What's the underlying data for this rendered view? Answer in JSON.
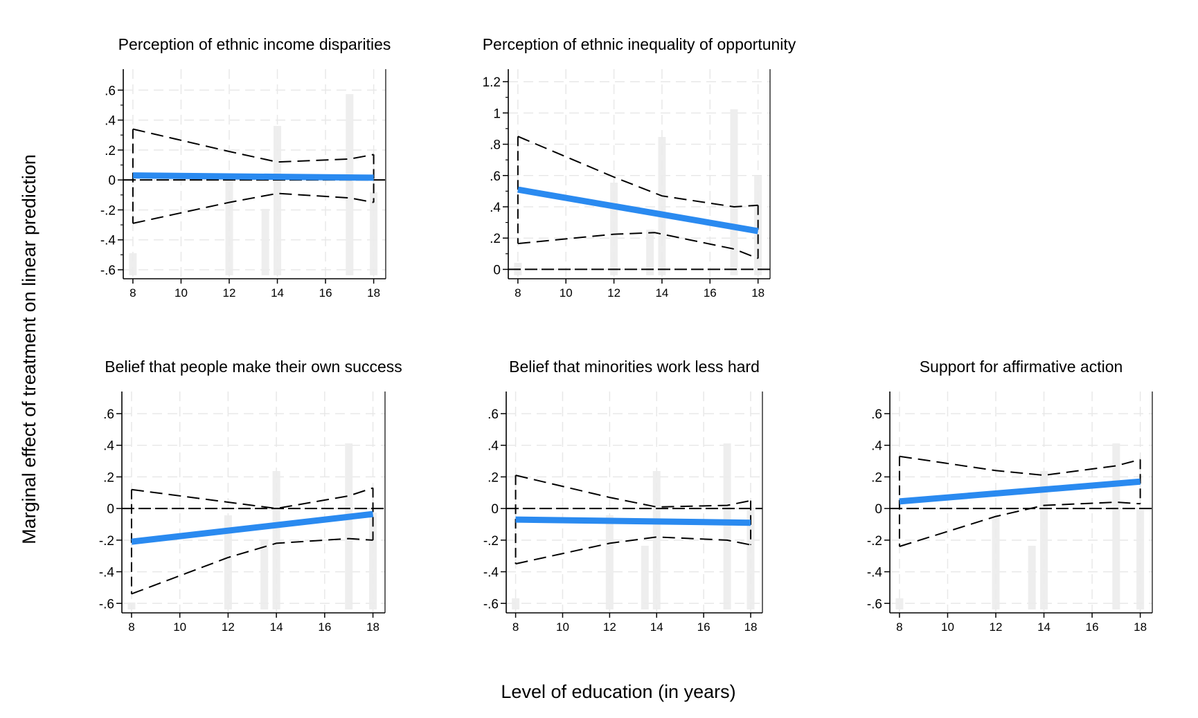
{
  "figure": {
    "ylabel": "Marginal effect of treatment on linear prediction",
    "xlabel": "Level of education (in years)"
  },
  "chart_data": [
    {
      "type": "line",
      "title": "Perception of ethnic income disparities",
      "x_ticks": [
        8,
        10,
        12,
        14,
        16,
        18
      ],
      "xlim": [
        7.6,
        18.5
      ],
      "y_ticks": [
        0.6,
        0.4,
        0.2,
        0,
        -0.2,
        -0.4,
        -0.6
      ],
      "y_tick_labels": [
        ".6",
        ".4",
        ".2",
        "0",
        "-.2",
        "-.4",
        "-.6"
      ],
      "ylim": [
        -0.66,
        0.74
      ],
      "minor_ticks": true,
      "grid": true,
      "reference_line_y": 0,
      "series": [
        {
          "role": "estimate",
          "x": [
            8,
            18
          ],
          "y": [
            0.03,
            0.015
          ]
        },
        {
          "role": "upper_ci",
          "x": [
            8,
            12,
            14,
            17,
            18
          ],
          "y": [
            0.34,
            0.19,
            0.12,
            0.14,
            0.17
          ]
        },
        {
          "role": "lower_ci",
          "x": [
            8,
            12,
            14,
            17,
            18
          ],
          "y": [
            -0.29,
            -0.15,
            -0.09,
            -0.12,
            -0.15
          ]
        }
      ],
      "histogram": [
        {
          "x": 8,
          "height": 0.16
        },
        {
          "x": 12,
          "height": 0.73
        },
        {
          "x": 13.5,
          "height": 0.48
        },
        {
          "x": 14,
          "height": 1.08
        },
        {
          "x": 17,
          "height": 1.31
        },
        {
          "x": 18,
          "height": 0.6
        }
      ]
    },
    {
      "type": "line",
      "title": "Perception of ethnic inequality of opportunity",
      "x_ticks": [
        8,
        10,
        12,
        14,
        16,
        18
      ],
      "xlim": [
        7.6,
        18.5
      ],
      "y_ticks": [
        1.2,
        1,
        0.8,
        0.6,
        0.4,
        0.2,
        0
      ],
      "y_tick_labels": [
        "1.2",
        "1",
        ".8",
        ".6",
        ".4",
        ".2",
        "0"
      ],
      "ylim": [
        -0.06,
        1.28
      ],
      "minor_ticks": true,
      "grid": true,
      "reference_line_y": 0,
      "series": [
        {
          "role": "estimate",
          "x": [
            8,
            18
          ],
          "y": [
            0.51,
            0.245
          ]
        },
        {
          "role": "upper_ci",
          "x": [
            8,
            12,
            14,
            17,
            18
          ],
          "y": [
            0.85,
            0.59,
            0.47,
            0.4,
            0.41
          ]
        },
        {
          "role": "lower_ci",
          "x": [
            8,
            12,
            13.7,
            17,
            18
          ],
          "y": [
            0.165,
            0.225,
            0.235,
            0.13,
            0.07
          ]
        }
      ],
      "histogram": [
        {
          "x": 8,
          "height": 0.09
        },
        {
          "x": 12,
          "height": 0.67
        },
        {
          "x": 13.5,
          "height": 0.33
        },
        {
          "x": 14,
          "height": 1.0
        },
        {
          "x": 17,
          "height": 1.2
        },
        {
          "x": 18,
          "height": 0.72
        }
      ]
    },
    {
      "type": "line",
      "title": "Belief that people make their own success",
      "x_ticks": [
        8,
        10,
        12,
        14,
        16,
        18
      ],
      "xlim": [
        7.6,
        18.5
      ],
      "y_ticks": [
        0.6,
        0.4,
        0.2,
        0,
        -0.2,
        -0.4,
        -0.6
      ],
      "y_tick_labels": [
        ".6",
        ".4",
        ".2",
        "0",
        "-.2",
        "-.4",
        "-.6"
      ],
      "ylim": [
        -0.66,
        0.74
      ],
      "minor_ticks": false,
      "grid": true,
      "reference_line_y": 0,
      "series": [
        {
          "role": "estimate",
          "x": [
            8,
            18
          ],
          "y": [
            -0.21,
            -0.035
          ]
        },
        {
          "role": "upper_ci",
          "x": [
            8,
            12,
            14,
            17,
            18
          ],
          "y": [
            0.12,
            0.04,
            0.0,
            0.08,
            0.13
          ]
        },
        {
          "role": "lower_ci",
          "x": [
            8,
            12,
            14,
            17,
            18
          ],
          "y": [
            -0.54,
            -0.31,
            -0.22,
            -0.19,
            -0.2
          ]
        }
      ],
      "histogram": [
        {
          "x": 8,
          "height": 0.05
        },
        {
          "x": 12,
          "height": 0.68
        },
        {
          "x": 13.5,
          "height": 0.5
        },
        {
          "x": 14,
          "height": 1.0
        },
        {
          "x": 17,
          "height": 1.2
        },
        {
          "x": 18,
          "height": 0.7
        }
      ]
    },
    {
      "type": "line",
      "title": "Belief that minorities work less hard",
      "x_ticks": [
        8,
        10,
        12,
        14,
        16,
        18
      ],
      "xlim": [
        7.6,
        18.5
      ],
      "y_ticks": [
        0.6,
        0.4,
        0.2,
        0,
        -0.2,
        -0.4,
        -0.6
      ],
      "y_tick_labels": [
        ".6",
        ".4",
        ".2",
        "0",
        "-.2",
        "-.4",
        "-.6"
      ],
      "ylim": [
        -0.66,
        0.74
      ],
      "minor_ticks": false,
      "grid": true,
      "reference_line_y": 0,
      "series": [
        {
          "role": "estimate",
          "x": [
            8,
            18
          ],
          "y": [
            -0.07,
            -0.09
          ]
        },
        {
          "role": "upper_ci",
          "x": [
            8,
            12,
            14,
            17,
            18
          ],
          "y": [
            0.21,
            0.07,
            0.01,
            0.02,
            0.05
          ]
        },
        {
          "role": "lower_ci",
          "x": [
            8,
            12,
            14,
            17,
            18
          ],
          "y": [
            -0.35,
            -0.22,
            -0.18,
            -0.2,
            -0.23
          ]
        }
      ],
      "histogram": [
        {
          "x": 8,
          "height": 0.08
        },
        {
          "x": 12,
          "height": 0.68
        },
        {
          "x": 13.5,
          "height": 0.46
        },
        {
          "x": 14,
          "height": 1.0
        },
        {
          "x": 17,
          "height": 1.2
        },
        {
          "x": 18,
          "height": 0.72
        }
      ]
    },
    {
      "type": "line",
      "title": "Support for affirmative action",
      "x_ticks": [
        8,
        10,
        12,
        14,
        16,
        18
      ],
      "xlim": [
        7.6,
        18.5
      ],
      "y_ticks": [
        0.6,
        0.4,
        0.2,
        0,
        -0.2,
        -0.4,
        -0.6
      ],
      "y_tick_labels": [
        ".6",
        ".4",
        ".2",
        "0",
        "-.2",
        "-.4",
        "-.6"
      ],
      "ylim": [
        -0.66,
        0.74
      ],
      "minor_ticks": false,
      "grid": true,
      "reference_line_y": 0,
      "series": [
        {
          "role": "estimate",
          "x": [
            8,
            18
          ],
          "y": [
            0.045,
            0.17
          ]
        },
        {
          "role": "upper_ci",
          "x": [
            8,
            12,
            14,
            17,
            18
          ],
          "y": [
            0.33,
            0.24,
            0.21,
            0.27,
            0.31
          ]
        },
        {
          "role": "lower_ci",
          "x": [
            8,
            12,
            14,
            17,
            18
          ],
          "y": [
            -0.24,
            -0.05,
            0.02,
            0.04,
            0.03
          ]
        }
      ],
      "histogram": [
        {
          "x": 8,
          "height": 0.08
        },
        {
          "x": 12,
          "height": 0.68
        },
        {
          "x": 13.5,
          "height": 0.46
        },
        {
          "x": 14,
          "height": 1.0
        },
        {
          "x": 17,
          "height": 1.2
        },
        {
          "x": 18,
          "height": 0.72
        }
      ]
    }
  ]
}
